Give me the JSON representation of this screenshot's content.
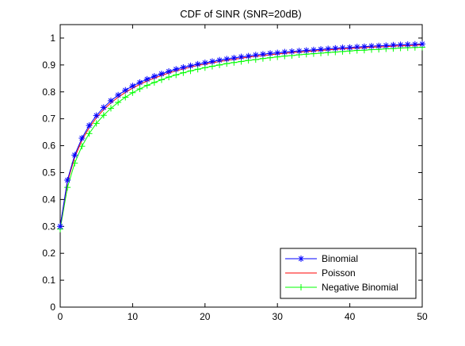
{
  "chart_data": {
    "type": "line",
    "title": "CDF of SINR (SNR=20dB)",
    "xlabel": "",
    "ylabel": "",
    "xlim": [
      0,
      50
    ],
    "ylim": [
      0,
      1.05
    ],
    "x_ticks": [
      0,
      10,
      20,
      30,
      40,
      50
    ],
    "y_ticks": [
      0,
      0.1,
      0.2,
      0.3,
      0.4,
      0.5,
      0.6,
      0.7,
      0.8,
      0.9,
      1
    ],
    "grid": false,
    "legend_position": "bottom-right",
    "x": [
      0,
      1,
      2,
      3,
      4,
      5,
      6,
      7,
      8,
      9,
      10,
      11,
      12,
      13,
      14,
      15,
      16,
      17,
      18,
      19,
      20,
      21,
      22,
      23,
      24,
      25,
      26,
      27,
      28,
      29,
      30,
      31,
      32,
      33,
      34,
      35,
      36,
      37,
      38,
      39,
      40,
      41,
      42,
      43,
      44,
      45,
      46,
      47,
      48,
      49,
      50
    ],
    "series": [
      {
        "name": "Binomial",
        "color": "#0000ff",
        "marker": "asterisk",
        "values": [
          0.3,
          0.472,
          0.565,
          0.628,
          0.675,
          0.712,
          0.742,
          0.767,
          0.788,
          0.806,
          0.822,
          0.835,
          0.847,
          0.858,
          0.867,
          0.876,
          0.884,
          0.891,
          0.897,
          0.903,
          0.908,
          0.913,
          0.918,
          0.922,
          0.926,
          0.93,
          0.933,
          0.937,
          0.94,
          0.943,
          0.945,
          0.948,
          0.95,
          0.952,
          0.954,
          0.956,
          0.958,
          0.96,
          0.962,
          0.964,
          0.965,
          0.967,
          0.968,
          0.97,
          0.971,
          0.972,
          0.974,
          0.975,
          0.976,
          0.977,
          0.978
        ]
      },
      {
        "name": "Poisson",
        "color": "#ff0000",
        "marker": "none",
        "values": [
          0.3,
          0.465,
          0.557,
          0.62,
          0.667,
          0.704,
          0.734,
          0.759,
          0.78,
          0.798,
          0.814,
          0.828,
          0.84,
          0.851,
          0.861,
          0.87,
          0.878,
          0.885,
          0.892,
          0.898,
          0.903,
          0.908,
          0.913,
          0.917,
          0.921,
          0.925,
          0.929,
          0.932,
          0.935,
          0.938,
          0.941,
          0.943,
          0.946,
          0.948,
          0.95,
          0.952,
          0.954,
          0.956,
          0.958,
          0.96,
          0.961,
          0.963,
          0.964,
          0.966,
          0.967,
          0.968,
          0.97,
          0.971,
          0.972,
          0.973,
          0.975
        ]
      },
      {
        "name": "Negative Binomial",
        "color": "#00ff00",
        "marker": "plus",
        "values": [
          0.29,
          0.445,
          0.535,
          0.598,
          0.645,
          0.683,
          0.713,
          0.739,
          0.761,
          0.78,
          0.797,
          0.811,
          0.824,
          0.835,
          0.845,
          0.855,
          0.863,
          0.871,
          0.878,
          0.884,
          0.89,
          0.895,
          0.9,
          0.905,
          0.909,
          0.913,
          0.917,
          0.92,
          0.924,
          0.927,
          0.93,
          0.933,
          0.935,
          0.938,
          0.94,
          0.942,
          0.944,
          0.946,
          0.948,
          0.95,
          0.952,
          0.954,
          0.955,
          0.957,
          0.958,
          0.96,
          0.961,
          0.963,
          0.964,
          0.965,
          0.966
        ]
      }
    ]
  }
}
